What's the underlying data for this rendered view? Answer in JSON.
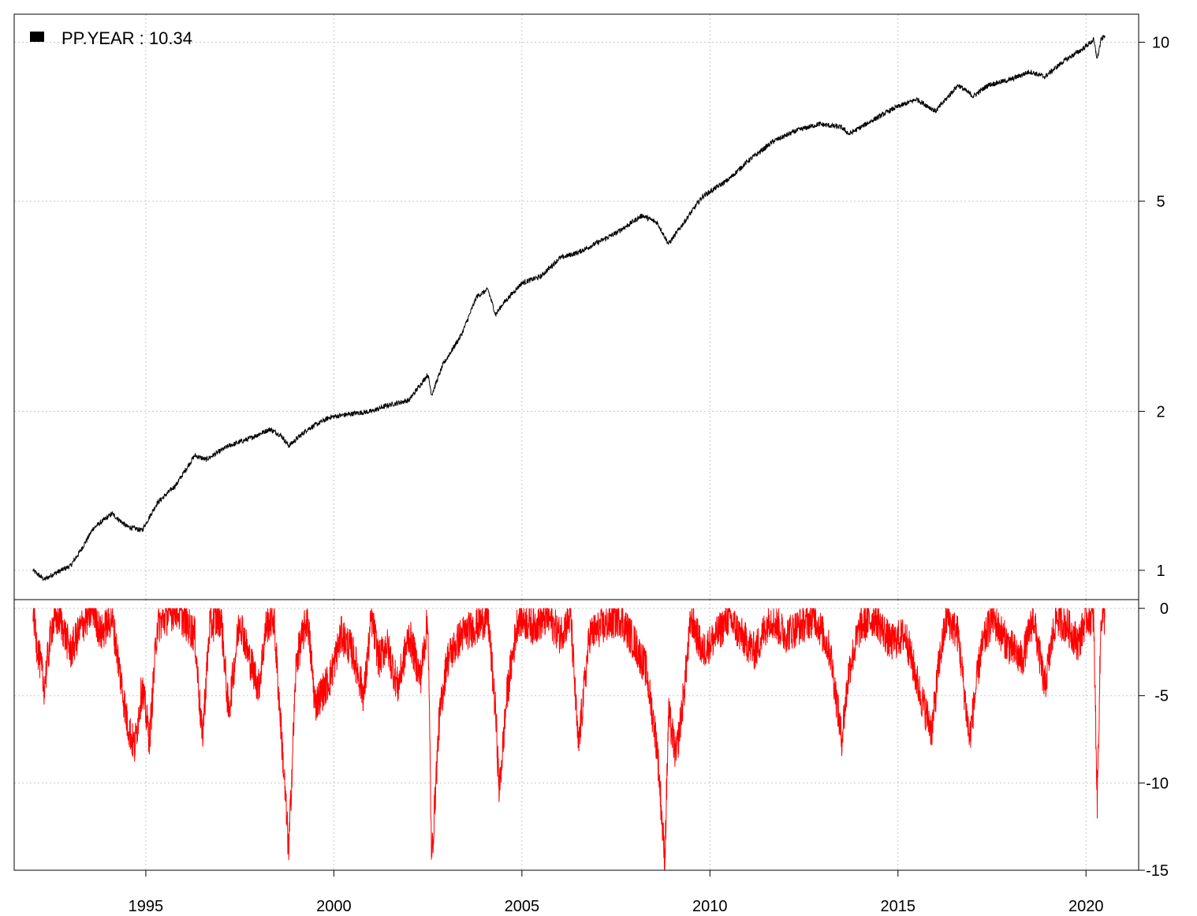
{
  "chart_data": [
    {
      "type": "line",
      "title": "",
      "scale": "log",
      "xlabel": "",
      "ylabel": "",
      "legend": {
        "label": "PP.YEAR : 10.34",
        "position": "top-left",
        "swatch_color": "#000000"
      },
      "xlim": [
        1991.5,
        2021.4
      ],
      "ylim": [
        0.88,
        11.3
      ],
      "x_ticks": [
        1995,
        2000,
        2005,
        2010,
        2015,
        2020
      ],
      "y_ticks": [
        1,
        2,
        5,
        10
      ],
      "y_tick_labels": [
        "1",
        "2",
        "5",
        "10"
      ],
      "grid": true,
      "line_color": "#000000",
      "series": [
        {
          "x": [
            1992.0,
            1992.3,
            1992.5,
            1993.0,
            1993.3,
            1993.6,
            1994.1,
            1994.5,
            1994.9,
            1995.3,
            1995.8,
            1996.3,
            1996.6,
            1997.2,
            1997.7,
            1998.3,
            1998.6,
            1998.8,
            1999.3,
            1999.9,
            2000.5,
            2001.0,
            2001.4,
            2002.0,
            2002.5,
            2002.6,
            2002.9,
            2003.4,
            2003.8,
            2004.1,
            2004.3,
            2004.5,
            2005.0,
            2005.5,
            2006.0,
            2006.5,
            2006.8,
            2007.5,
            2008.2,
            2008.6,
            2008.9,
            2009.3,
            2009.8,
            2010.5,
            2011.0,
            2011.7,
            2012.3,
            2012.9,
            2013.5,
            2013.7,
            2014.3,
            2014.9,
            2015.5,
            2016.0,
            2016.6,
            2017.0,
            2017.4,
            2018.0,
            2018.5,
            2018.9,
            2019.4,
            2019.9,
            2020.2,
            2020.3,
            2020.4,
            2020.5
          ],
          "y": [
            1.0,
            0.96,
            0.98,
            1.02,
            1.1,
            1.2,
            1.28,
            1.21,
            1.19,
            1.34,
            1.45,
            1.65,
            1.62,
            1.72,
            1.77,
            1.85,
            1.8,
            1.72,
            1.85,
            1.95,
            1.98,
            2.0,
            2.05,
            2.1,
            2.35,
            2.15,
            2.45,
            2.8,
            3.3,
            3.4,
            3.05,
            3.2,
            3.5,
            3.6,
            3.9,
            4.0,
            4.1,
            4.35,
            4.7,
            4.55,
            4.15,
            4.55,
            5.1,
            5.5,
            5.95,
            6.5,
            6.8,
            7.0,
            6.9,
            6.7,
            7.1,
            7.5,
            7.8,
            7.4,
            8.3,
            7.9,
            8.3,
            8.5,
            8.8,
            8.6,
            9.2,
            9.7,
            10.1,
            9.3,
            10.1,
            10.3
          ]
        }
      ]
    },
    {
      "type": "line",
      "title": "",
      "xlabel": "",
      "ylabel": "",
      "xlim": [
        1991.5,
        2021.4
      ],
      "ylim": [
        -15,
        0.5
      ],
      "x_ticks": [
        1995,
        2000,
        2005,
        2010,
        2015,
        2020
      ],
      "x_tick_labels": [
        "1995",
        "2000",
        "2005",
        "2010",
        "2015",
        "2020"
      ],
      "y_ticks": [
        0,
        -5,
        -10,
        -15
      ],
      "y_tick_labels": [
        "0",
        "-5",
        "-10",
        "-15"
      ],
      "grid": true,
      "line_color": "#ff0000",
      "series": [
        {
          "x": [
            1992.0,
            1992.1,
            1992.3,
            1992.5,
            1992.7,
            1993.0,
            1993.3,
            1993.6,
            1993.8,
            1994.1,
            1994.3,
            1994.5,
            1994.7,
            1994.9,
            1995.1,
            1995.3,
            1995.8,
            1996.3,
            1996.5,
            1996.7,
            1997.0,
            1997.2,
            1997.5,
            1997.7,
            1998.0,
            1998.2,
            1998.4,
            1998.6,
            1998.8,
            1999.0,
            1999.3,
            1999.5,
            1999.9,
            2000.2,
            2000.5,
            2000.8,
            2001.0,
            2001.2,
            2001.4,
            2001.7,
            2002.0,
            2002.3,
            2002.5,
            2002.6,
            2002.8,
            2003.0,
            2003.4,
            2003.8,
            2004.1,
            2004.3,
            2004.4,
            2004.6,
            2004.9,
            2005.3,
            2005.7,
            2006.0,
            2006.3,
            2006.5,
            2006.8,
            2007.2,
            2007.6,
            2008.0,
            2008.3,
            2008.6,
            2008.8,
            2008.9,
            2009.1,
            2009.3,
            2009.5,
            2009.8,
            2010.2,
            2010.5,
            2010.8,
            2011.2,
            2011.6,
            2012.0,
            2012.4,
            2012.8,
            2013.2,
            2013.5,
            2013.7,
            2014.0,
            2014.4,
            2014.8,
            2015.2,
            2015.6,
            2015.9,
            2016.1,
            2016.3,
            2016.6,
            2016.9,
            2017.2,
            2017.5,
            2017.9,
            2018.3,
            2018.6,
            2018.9,
            2019.2,
            2019.5,
            2019.8,
            2020.0,
            2020.2,
            2020.3,
            2020.4,
            2020.5
          ],
          "y": [
            0,
            -2.0,
            -4.5,
            -1.0,
            -0.5,
            -2.5,
            -1.0,
            0,
            -1.5,
            -0.5,
            -3.5,
            -6.5,
            -8.0,
            -4.5,
            -7.5,
            -1.0,
            0,
            -1.5,
            -7.5,
            -1.0,
            -0.5,
            -6.0,
            -0.5,
            -2.5,
            -4.5,
            -1.0,
            -0.5,
            -7.0,
            -14.0,
            -3.0,
            -0.5,
            -5.5,
            -4.0,
            -1.5,
            -2.5,
            -5.0,
            -0.5,
            -3.0,
            -2.0,
            -4.5,
            -1.5,
            -4.0,
            -0.5,
            -14.5,
            -6.5,
            -3.0,
            -1.5,
            -1.0,
            -0.5,
            -6.0,
            -10.5,
            -5.0,
            -0.5,
            -1.0,
            -0.5,
            -1.5,
            -0.5,
            -8.0,
            -1.5,
            -1.0,
            -0.5,
            -2.0,
            -3.5,
            -8.0,
            -14.5,
            -6.0,
            -8.5,
            -5.0,
            -0.5,
            -2.5,
            -1.5,
            -0.5,
            -1.5,
            -2.5,
            -0.5,
            -1.5,
            -1.0,
            -0.5,
            -2.5,
            -7.5,
            -3.5,
            -1.0,
            -0.5,
            -2.0,
            -1.5,
            -5.0,
            -7.0,
            -3.0,
            -0.5,
            -1.5,
            -7.5,
            -2.5,
            -0.5,
            -2.0,
            -3.0,
            -0.5,
            -4.5,
            -0.5,
            -1.0,
            -2.0,
            -0.5,
            -0.5,
            -11.0,
            -0.5,
            -0.5
          ]
        }
      ]
    }
  ]
}
